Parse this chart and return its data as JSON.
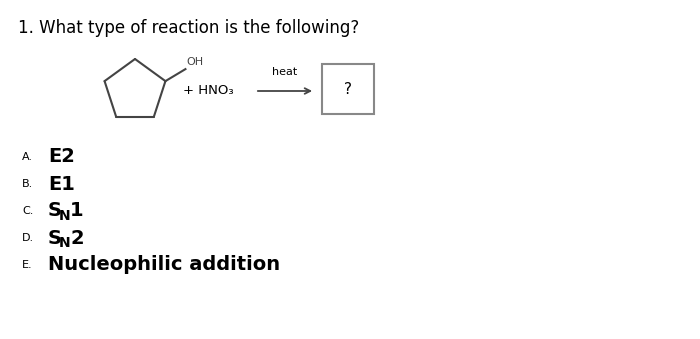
{
  "title": "1. What type of reaction is the following?",
  "title_fontsize": 12,
  "background_color": "#ffffff",
  "answer_A_label": "A.",
  "answer_A_text": "E2",
  "answer_B_label": "B.",
  "answer_B_text": "E1",
  "answer_C_label": "C.",
  "answer_C_text_main": "S",
  "answer_C_text_sub": "N",
  "answer_C_text_end": "1",
  "answer_D_label": "D.",
  "answer_D_text_main": "S",
  "answer_D_text_sub": "N",
  "answer_D_text_end": "2",
  "answer_E_label": "E.",
  "answer_E_text": "Nucleophilic addition",
  "reagent_text": "+ HNO₃",
  "heat_text": "heat",
  "question_text": "?",
  "mol_color": "#444444",
  "arrow_color": "#444444",
  "box_edge_color": "#888888",
  "label_fontsize": 8,
  "answer_fontsize_bold": 14,
  "answer_sub_fontsize": 10
}
